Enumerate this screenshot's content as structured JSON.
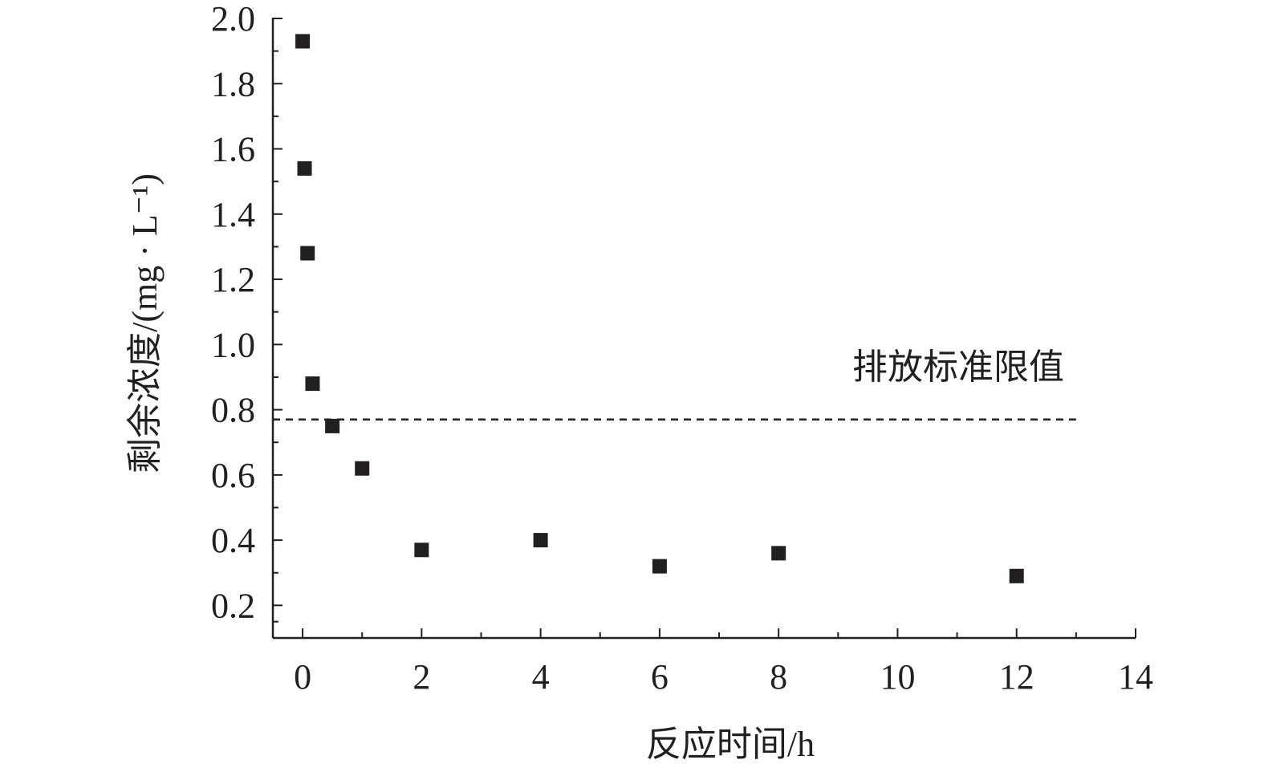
{
  "chart_data": {
    "type": "scatter",
    "xlabel": "反应时间/h",
    "ylabel": "剩余浓度/(mg · L⁻¹)",
    "xlim": [
      -0.5,
      14
    ],
    "ylim": [
      0.1,
      2.0
    ],
    "x_ticks": [
      0,
      2,
      4,
      6,
      8,
      10,
      12,
      14
    ],
    "x_tick_labels": [
      "0",
      "2",
      "4",
      "6",
      "8",
      "10",
      "12",
      "14"
    ],
    "y_ticks": [
      0.2,
      0.4,
      0.6,
      0.8,
      1.0,
      1.2,
      1.4,
      1.6,
      1.8,
      2.0
    ],
    "y_tick_labels": [
      "0.2",
      "0.4",
      "0.6",
      "0.8",
      "1.0",
      "1.2",
      "1.4",
      "1.6",
      "1.8",
      "2.0"
    ],
    "series": [
      {
        "marker": "square",
        "color": "#231f20",
        "points": [
          {
            "x": 0,
            "y": 1.93
          },
          {
            "x": 0.033,
            "y": 1.54
          },
          {
            "x": 0.083,
            "y": 1.28
          },
          {
            "x": 0.167,
            "y": 0.88
          },
          {
            "x": 0.5,
            "y": 0.75
          },
          {
            "x": 1,
            "y": 0.62
          },
          {
            "x": 2,
            "y": 0.37
          },
          {
            "x": 4,
            "y": 0.4
          },
          {
            "x": 6,
            "y": 0.32
          },
          {
            "x": 8,
            "y": 0.36
          },
          {
            "x": 12,
            "y": 0.29
          }
        ]
      }
    ],
    "reference_line": {
      "label": "排放标准限值",
      "y": 0.77,
      "x_range": [
        -0.5,
        13
      ],
      "style": "dashed"
    },
    "grid": false,
    "legend": "none"
  }
}
